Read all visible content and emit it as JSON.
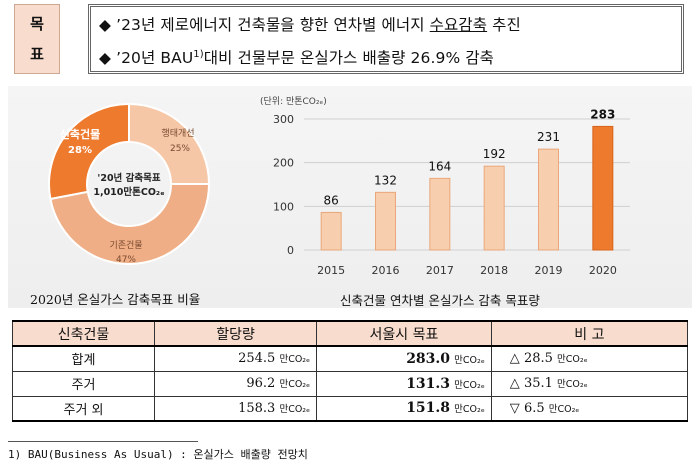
{
  "goal": {
    "label_1": "목",
    "label_2": "표",
    "line1": {
      "bullet": "◆",
      "text": "’23년 제로에너지 건축물을 향한 연차별 에너지 ",
      "underlined": "수요감축",
      "tail": " 추진"
    },
    "line2": {
      "bullet": "◆",
      "pre": "’20년 BAU",
      "sup": "1)",
      "text": "대비 건물부문 온실가스 배출량 26.9% 감축"
    }
  },
  "donut": {
    "center_line1": "'20년 감축목표",
    "center_line2": "1,010만톤CO₂ₑ",
    "caption": "2020년 온실가스 감축목표 비율",
    "colors": {
      "new": "#ee7a2e",
      "retrofit": "#f6c7a6",
      "existing": "#efae85"
    },
    "segments": [
      {
        "name": "신축건물",
        "pct": "28%",
        "value": 28
      },
      {
        "name": "행태개선",
        "pct": "25%",
        "value": 25
      },
      {
        "name": "기존건물",
        "pct": "47%",
        "value": 47
      }
    ]
  },
  "chart_data": {
    "type": "bar",
    "title": "신축건물 연차별 온실가스 감축 목표량",
    "ylabel": "(단위: 만톤CO₂ₑ)",
    "categories": [
      "2015",
      "2016",
      "2017",
      "2018",
      "2019",
      "2020"
    ],
    "values": [
      86,
      132,
      164,
      192,
      231,
      283
    ],
    "ylim": [
      0,
      300
    ],
    "yticks": [
      "0",
      "100",
      "200",
      "300"
    ],
    "grid": true,
    "colors": {
      "bar": "#f8cfae",
      "highlight": "#ee7a2e"
    }
  },
  "table": {
    "headers": [
      "신축건물",
      "할당량",
      "서울시 목표",
      "비 고"
    ],
    "unit": "만CO₂ₑ",
    "rows": [
      {
        "category": "합계",
        "allocation": "254.5",
        "target": "283.0",
        "note_symbol": "△",
        "note": "28.5"
      },
      {
        "category": "주거",
        "allocation": "96.2",
        "target": "131.3",
        "note_symbol": "△",
        "note": "35.1"
      },
      {
        "category": "주거 외",
        "allocation": "158.3",
        "target": "151.8",
        "note_symbol": "▽",
        "note": "6.5"
      }
    ]
  },
  "footnote": "1) BAU(Business As Usual) : 온실가스 배출량 전망치"
}
